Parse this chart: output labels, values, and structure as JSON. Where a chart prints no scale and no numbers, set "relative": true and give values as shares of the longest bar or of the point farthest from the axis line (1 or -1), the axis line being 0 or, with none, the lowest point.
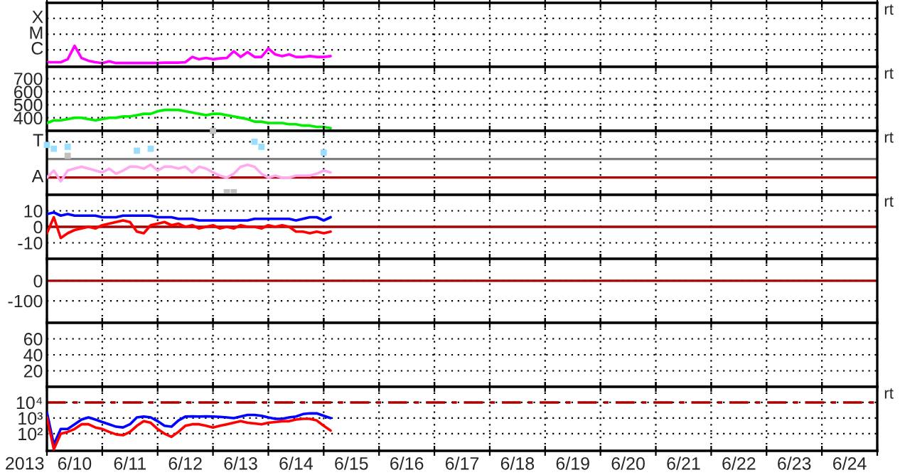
{
  "chart_data": [
    {
      "type": "line",
      "relative": true,
      "grid": "x",
      "tick_labels": false,
      "annotations": [
        "rt"
      ],
      "xlim": [
        "2013-06-10T00:00",
        "2013-06-25T00:00"
      ],
      "xticks": [
        {
          "value": "2013-06-10T00:00",
          "label": null
        },
        {
          "value": "2013-06-11T00:00",
          "label": null
        },
        {
          "value": "2013-06-12T00:00",
          "label": null
        },
        {
          "value": "2013-06-13T00:00",
          "label": null
        },
        {
          "value": "2013-06-14T00:00",
          "label": null
        },
        {
          "value": "2013-06-15T00:00",
          "label": null
        },
        {
          "value": "2013-06-16T00:00",
          "label": null
        },
        {
          "value": "2013-06-17T00:00",
          "label": null
        },
        {
          "value": "2013-06-18T00:00",
          "label": null
        },
        {
          "value": "2013-06-19T00:00",
          "label": null
        },
        {
          "value": "2013-06-20T00:00",
          "label": null
        },
        {
          "value": "2013-06-21T00:00",
          "label": null
        },
        {
          "value": "2013-06-22T00:00",
          "label": null
        },
        {
          "value": "2013-06-23T00:00",
          "label": null
        },
        {
          "value": "2013-06-24T00:00",
          "label": null
        },
        {
          "value": "2013-06-25T00:00",
          "label": null
        }
      ],
      "ref_lines": [
        {
          "axis": "y",
          "value": 0.81,
          "label": "C",
          "color": "#000000",
          "line_style": "dotted"
        },
        {
          "axis": "y",
          "value": 1.55,
          "label": "M",
          "color": "#000000",
          "line_style": "dotted"
        },
        {
          "axis": "y",
          "value": 2.3,
          "label": "X",
          "color": "#000000",
          "line_style": "dotted"
        }
      ],
      "x": [
        "2013-06-10T00:00",
        "2013-06-10T03:00",
        "2013-06-10T06:00",
        "2013-06-10T09:00",
        "2013-06-10T12:00",
        "2013-06-10T15:00",
        "2013-06-10T18:00",
        "2013-06-10T21:00",
        "2013-06-11T00:00",
        "2013-06-11T03:00",
        "2013-06-11T06:00",
        "2013-06-11T09:00",
        "2013-06-11T12:00",
        "2013-06-11T15:00",
        "2013-06-11T18:00",
        "2013-06-11T21:00",
        "2013-06-12T00:00",
        "2013-06-12T03:00",
        "2013-06-12T06:00",
        "2013-06-12T09:00",
        "2013-06-12T12:00",
        "2013-06-12T15:00",
        "2013-06-12T18:00",
        "2013-06-12T21:00",
        "2013-06-13T00:00",
        "2013-06-13T03:00",
        "2013-06-13T06:00",
        "2013-06-13T09:00",
        "2013-06-13T12:00",
        "2013-06-13T15:00",
        "2013-06-13T18:00",
        "2013-06-13T21:00",
        "2013-06-14T00:00",
        "2013-06-14T03:00",
        "2013-06-14T06:00",
        "2013-06-14T09:00",
        "2013-06-14T12:00",
        "2013-06-14T15:00",
        "2013-06-14T18:00",
        "2013-06-14T21:00",
        "2013-06-15T00:00",
        "2013-06-15T03:00"
      ],
      "series": [
        {
          "color": "#ff00ff",
          "values": [
            0.22,
            0.22,
            0.22,
            0.36,
            1.0,
            0.42,
            0.29,
            0.22,
            0.18,
            0.26,
            0.18,
            0.18,
            0.18,
            0.18,
            0.18,
            0.18,
            0.18,
            0.2,
            0.2,
            0.2,
            0.22,
            0.47,
            0.36,
            0.42,
            0.36,
            0.4,
            0.42,
            0.74,
            0.47,
            0.7,
            0.47,
            0.47,
            0.87,
            0.59,
            0.51,
            0.59,
            0.47,
            0.47,
            0.51,
            0.47,
            0.47,
            0.51
          ]
        }
      ]
    },
    {
      "type": "line",
      "grid": true,
      "tick_labels": "y",
      "annotations": [
        "rt"
      ],
      "xlim": [
        "2013-06-10T00:00",
        "2013-06-25T00:00"
      ],
      "xticks": [
        {
          "value": "2013-06-10T00:00",
          "label": null
        },
        {
          "value": "2013-06-11T00:00",
          "label": null
        },
        {
          "value": "2013-06-12T00:00",
          "label": null
        },
        {
          "value": "2013-06-13T00:00",
          "label": null
        },
        {
          "value": "2013-06-14T00:00",
          "label": null
        },
        {
          "value": "2013-06-15T00:00",
          "label": null
        },
        {
          "value": "2013-06-16T00:00",
          "label": null
        },
        {
          "value": "2013-06-17T00:00",
          "label": null
        },
        {
          "value": "2013-06-18T00:00",
          "label": null
        },
        {
          "value": "2013-06-19T00:00",
          "label": null
        },
        {
          "value": "2013-06-20T00:00",
          "label": null
        },
        {
          "value": "2013-06-21T00:00",
          "label": null
        },
        {
          "value": "2013-06-22T00:00",
          "label": null
        },
        {
          "value": "2013-06-23T00:00",
          "label": null
        },
        {
          "value": "2013-06-24T00:00",
          "label": null
        },
        {
          "value": "2013-06-25T00:00",
          "label": null
        }
      ],
      "ylim": [
        300,
        790
      ],
      "yticks": [
        400,
        500,
        600,
        700
      ],
      "x": [
        "2013-06-10T00:00",
        "2013-06-10T03:00",
        "2013-06-10T06:00",
        "2013-06-10T09:00",
        "2013-06-10T12:00",
        "2013-06-10T15:00",
        "2013-06-10T18:00",
        "2013-06-10T21:00",
        "2013-06-11T00:00",
        "2013-06-11T03:00",
        "2013-06-11T06:00",
        "2013-06-11T09:00",
        "2013-06-11T12:00",
        "2013-06-11T15:00",
        "2013-06-11T18:00",
        "2013-06-11T21:00",
        "2013-06-12T00:00",
        "2013-06-12T03:00",
        "2013-06-12T06:00",
        "2013-06-12T09:00",
        "2013-06-12T12:00",
        "2013-06-12T15:00",
        "2013-06-12T18:00",
        "2013-06-12T21:00",
        "2013-06-13T00:00",
        "2013-06-13T03:00",
        "2013-06-13T06:00",
        "2013-06-13T09:00",
        "2013-06-13T12:00",
        "2013-06-13T15:00",
        "2013-06-13T18:00",
        "2013-06-13T21:00",
        "2013-06-14T00:00",
        "2013-06-14T03:00",
        "2013-06-14T06:00",
        "2013-06-14T09:00",
        "2013-06-14T12:00",
        "2013-06-14T15:00",
        "2013-06-14T18:00",
        "2013-06-14T21:00",
        "2013-06-15T00:00",
        "2013-06-15T03:00"
      ],
      "series": [
        {
          "color": "#00ee00",
          "values": [
            360,
            380,
            380,
            390,
            400,
            400,
            390,
            380,
            390,
            400,
            400,
            410,
            410,
            420,
            430,
            430,
            450,
            460,
            460,
            460,
            450,
            440,
            430,
            420,
            430,
            430,
            420,
            410,
            400,
            390,
            370,
            370,
            360,
            360,
            360,
            350,
            350,
            340,
            340,
            330,
            330,
            320
          ]
        }
      ]
    },
    {
      "type": "line",
      "relative": true,
      "grid": "x",
      "tick_labels": false,
      "annotations": [
        "rt"
      ],
      "xlim": [
        "2013-06-10T00:00",
        "2013-06-25T00:00"
      ],
      "xticks": [
        {
          "value": "2013-06-10T00:00",
          "label": null
        },
        {
          "value": "2013-06-11T00:00",
          "label": null
        },
        {
          "value": "2013-06-12T00:00",
          "label": null
        },
        {
          "value": "2013-06-13T00:00",
          "label": null
        },
        {
          "value": "2013-06-14T00:00",
          "label": null
        },
        {
          "value": "2013-06-15T00:00",
          "label": null
        },
        {
          "value": "2013-06-16T00:00",
          "label": null
        },
        {
          "value": "2013-06-17T00:00",
          "label": null
        },
        {
          "value": "2013-06-18T00:00",
          "label": null
        },
        {
          "value": "2013-06-19T00:00",
          "label": null
        },
        {
          "value": "2013-06-20T00:00",
          "label": null
        },
        {
          "value": "2013-06-21T00:00",
          "label": null
        },
        {
          "value": "2013-06-22T00:00",
          "label": null
        },
        {
          "value": "2013-06-23T00:00",
          "label": null
        },
        {
          "value": "2013-06-24T00:00",
          "label": null
        },
        {
          "value": "2013-06-25T00:00",
          "label": null
        }
      ],
      "ref_lines": [
        {
          "axis": "y",
          "value": 0.27,
          "label": "A",
          "color": "#aa0000"
        },
        {
          "axis": "y",
          "value": 0.83,
          "label": "T",
          "color": "#000000",
          "line_style": "dotted"
        },
        {
          "axis": "y",
          "value": 0.56,
          "color": "#808080"
        }
      ],
      "x": [
        "2013-06-10T00:00",
        "2013-06-10T03:00",
        "2013-06-10T06:00",
        "2013-06-10T09:00",
        "2013-06-10T12:00",
        "2013-06-10T15:00",
        "2013-06-10T18:00",
        "2013-06-10T21:00",
        "2013-06-11T00:00",
        "2013-06-11T03:00",
        "2013-06-11T06:00",
        "2013-06-11T09:00",
        "2013-06-11T12:00",
        "2013-06-11T15:00",
        "2013-06-11T18:00",
        "2013-06-11T21:00",
        "2013-06-12T00:00",
        "2013-06-12T03:00",
        "2013-06-12T06:00",
        "2013-06-12T09:00",
        "2013-06-12T12:00",
        "2013-06-12T15:00",
        "2013-06-12T18:00",
        "2013-06-12T21:00",
        "2013-06-13T00:00",
        "2013-06-13T03:00",
        "2013-06-13T06:00",
        "2013-06-13T09:00",
        "2013-06-13T12:00",
        "2013-06-13T15:00",
        "2013-06-13T18:00",
        "2013-06-13T21:00",
        "2013-06-14T00:00",
        "2013-06-14T03:00",
        "2013-06-14T06:00",
        "2013-06-14T09:00",
        "2013-06-14T12:00",
        "2013-06-14T15:00",
        "2013-06-14T18:00",
        "2013-06-14T21:00",
        "2013-06-15T00:00",
        "2013-06-15T03:00"
      ],
      "series": [
        {
          "type": "scatter",
          "marker": "square",
          "color": "#c0c0c0",
          "values": [
            null,
            null,
            null,
            0.61,
            null,
            null,
            null,
            null,
            null,
            null,
            null,
            null,
            null,
            null,
            null,
            null,
            null,
            null,
            null,
            null,
            null,
            null,
            null,
            null,
            1.0,
            null,
            0.04,
            0.04,
            null,
            null,
            null,
            null,
            null,
            null,
            null,
            null,
            null,
            null,
            null,
            null,
            null,
            null
          ]
        },
        {
          "color": "#ffaaee",
          "values": [
            0.27,
            0.38,
            0.21,
            0.38,
            0.41,
            0.44,
            0.41,
            0.38,
            0.35,
            0.41,
            0.33,
            0.38,
            0.44,
            0.44,
            0.41,
            0.47,
            0.38,
            0.44,
            0.44,
            0.41,
            0.44,
            0.35,
            0.44,
            0.41,
            0.35,
            0.3,
            0.27,
            0.33,
            0.44,
            0.47,
            0.44,
            0.33,
            0.27,
            0.3,
            0.27,
            0.27,
            0.3,
            0.3,
            0.3,
            0.33,
            0.38,
            0.35
          ]
        },
        {
          "type": "scatter",
          "marker": "square",
          "color": "#99ddff",
          "values": [
            0.78,
            0.72,
            null,
            0.75,
            null,
            null,
            null,
            null,
            null,
            null,
            null,
            null,
            null,
            0.69,
            null,
            0.72,
            null,
            null,
            null,
            null,
            null,
            null,
            null,
            null,
            null,
            null,
            null,
            null,
            null,
            null,
            0.83,
            0.75,
            null,
            null,
            null,
            null,
            null,
            null,
            null,
            null,
            0.66,
            null
          ]
        }
      ]
    },
    {
      "type": "line",
      "grid": true,
      "tick_labels": "y",
      "annotations": [
        "rt"
      ],
      "xlim": [
        "2013-06-10T00:00",
        "2013-06-25T00:00"
      ],
      "xticks": [
        {
          "value": "2013-06-10T00:00",
          "label": null
        },
        {
          "value": "2013-06-11T00:00",
          "label": null
        },
        {
          "value": "2013-06-12T00:00",
          "label": null
        },
        {
          "value": "2013-06-13T00:00",
          "label": null
        },
        {
          "value": "2013-06-14T00:00",
          "label": null
        },
        {
          "value": "2013-06-15T00:00",
          "label": null
        },
        {
          "value": "2013-06-16T00:00",
          "label": null
        },
        {
          "value": "2013-06-17T00:00",
          "label": null
        },
        {
          "value": "2013-06-18T00:00",
          "label": null
        },
        {
          "value": "2013-06-19T00:00",
          "label": null
        },
        {
          "value": "2013-06-20T00:00",
          "label": null
        },
        {
          "value": "2013-06-21T00:00",
          "label": null
        },
        {
          "value": "2013-06-22T00:00",
          "label": null
        },
        {
          "value": "2013-06-23T00:00",
          "label": null
        },
        {
          "value": "2013-06-24T00:00",
          "label": null
        },
        {
          "value": "2013-06-25T00:00",
          "label": null
        }
      ],
      "ylim": [
        -20,
        20
      ],
      "yticks": [
        {
          "value": -10,
          "label": "-10"
        },
        0,
        10
      ],
      "ref_lines": [
        {
          "axis": "y",
          "value": 0,
          "color": "#aa0000"
        }
      ],
      "x": [
        "2013-06-10T00:00",
        "2013-06-10T03:00",
        "2013-06-10T06:00",
        "2013-06-10T09:00",
        "2013-06-10T12:00",
        "2013-06-10T15:00",
        "2013-06-10T18:00",
        "2013-06-10T21:00",
        "2013-06-11T00:00",
        "2013-06-11T03:00",
        "2013-06-11T06:00",
        "2013-06-11T09:00",
        "2013-06-11T12:00",
        "2013-06-11T15:00",
        "2013-06-11T18:00",
        "2013-06-11T21:00",
        "2013-06-12T00:00",
        "2013-06-12T03:00",
        "2013-06-12T06:00",
        "2013-06-12T09:00",
        "2013-06-12T12:00",
        "2013-06-12T15:00",
        "2013-06-12T18:00",
        "2013-06-12T21:00",
        "2013-06-13T00:00",
        "2013-06-13T03:00",
        "2013-06-13T06:00",
        "2013-06-13T09:00",
        "2013-06-13T12:00",
        "2013-06-13T15:00",
        "2013-06-13T18:00",
        "2013-06-13T21:00",
        "2013-06-14T00:00",
        "2013-06-14T03:00",
        "2013-06-14T06:00",
        "2013-06-14T09:00",
        "2013-06-14T12:00",
        "2013-06-14T15:00",
        "2013-06-14T18:00",
        "2013-06-14T21:00",
        "2013-06-15T00:00",
        "2013-06-15T03:00"
      ],
      "series": [
        {
          "color": "#0000ff",
          "values": [
            8,
            9,
            7,
            8,
            7,
            7,
            7,
            7,
            6,
            6,
            6,
            7,
            7,
            7,
            7,
            7,
            6,
            6,
            6,
            5,
            5,
            5,
            4,
            4,
            4,
            4,
            4,
            4,
            4,
            4,
            5,
            5,
            5,
            5,
            5,
            5,
            4,
            5,
            6,
            6,
            4,
            6
          ]
        },
        {
          "color": "#ff0000",
          "values": [
            -4,
            6,
            -7,
            -4,
            -2,
            -1,
            0,
            -1,
            1,
            2,
            3,
            4,
            3,
            -3,
            -4,
            1,
            2,
            3,
            1,
            2,
            0,
            1,
            -1,
            0,
            1,
            -1,
            0,
            -1,
            1,
            0,
            0,
            -1,
            1,
            0,
            1,
            0,
            -3,
            -3,
            -4,
            -3,
            -4,
            -3
          ]
        }
      ]
    },
    {
      "type": "line",
      "grid": true,
      "tick_labels": "y",
      "xlim": [
        "2013-06-10T00:00",
        "2013-06-25T00:00"
      ],
      "xticks": [
        {
          "value": "2013-06-10T00:00",
          "label": null
        },
        {
          "value": "2013-06-11T00:00",
          "label": null
        },
        {
          "value": "2013-06-12T00:00",
          "label": null
        },
        {
          "value": "2013-06-13T00:00",
          "label": null
        },
        {
          "value": "2013-06-14T00:00",
          "label": null
        },
        {
          "value": "2013-06-15T00:00",
          "label": null
        },
        {
          "value": "2013-06-16T00:00",
          "label": null
        },
        {
          "value": "2013-06-17T00:00",
          "label": null
        },
        {
          "value": "2013-06-18T00:00",
          "label": null
        },
        {
          "value": "2013-06-19T00:00",
          "label": null
        },
        {
          "value": "2013-06-20T00:00",
          "label": null
        },
        {
          "value": "2013-06-21T00:00",
          "label": null
        },
        {
          "value": "2013-06-22T00:00",
          "label": null
        },
        {
          "value": "2013-06-23T00:00",
          "label": null
        },
        {
          "value": "2013-06-24T00:00",
          "label": null
        },
        {
          "value": "2013-06-25T00:00",
          "label": null
        }
      ],
      "ylim": [
        -210,
        110
      ],
      "yticks": [
        {
          "value": -100,
          "label": "-100"
        },
        0
      ],
      "ref_lines": [
        {
          "axis": "y",
          "value": 0,
          "color": "#aa0000"
        }
      ]
    },
    {
      "type": "line",
      "grid": true,
      "tick_labels": "y",
      "xlim": [
        "2013-06-10T00:00",
        "2013-06-25T00:00"
      ],
      "xticks": [
        {
          "value": "2013-06-10T00:00",
          "label": null
        },
        {
          "value": "2013-06-11T00:00",
          "label": null
        },
        {
          "value": "2013-06-12T00:00",
          "label": null
        },
        {
          "value": "2013-06-13T00:00",
          "label": null
        },
        {
          "value": "2013-06-14T00:00",
          "label": null
        },
        {
          "value": "2013-06-15T00:00",
          "label": null
        },
        {
          "value": "2013-06-16T00:00",
          "label": null
        },
        {
          "value": "2013-06-17T00:00",
          "label": null
        },
        {
          "value": "2013-06-18T00:00",
          "label": null
        },
        {
          "value": "2013-06-19T00:00",
          "label": null
        },
        {
          "value": "2013-06-20T00:00",
          "label": null
        },
        {
          "value": "2013-06-21T00:00",
          "label": null
        },
        {
          "value": "2013-06-22T00:00",
          "label": null
        },
        {
          "value": "2013-06-23T00:00",
          "label": null
        },
        {
          "value": "2013-06-24T00:00",
          "label": null
        },
        {
          "value": "2013-06-25T00:00",
          "label": null
        }
      ],
      "ylim": [
        0,
        80
      ],
      "yticks": [
        20,
        40,
        60
      ]
    },
    {
      "type": "line",
      "log": "y",
      "grid": true,
      "annotations": [
        "rt"
      ],
      "xlabel": "2013",
      "xlim": [
        "2013-06-10T00:00",
        "2013-06-25T00:00"
      ],
      "xticks": [
        {
          "value": "2013-06-10T00:00",
          "label": null
        },
        {
          "value": "2013-06-11T00:00",
          "label": null
        },
        {
          "value": "2013-06-12T00:00",
          "label": null
        },
        {
          "value": "2013-06-13T00:00",
          "label": null
        },
        {
          "value": "2013-06-14T00:00",
          "label": null
        },
        {
          "value": "2013-06-15T00:00",
          "label": null
        },
        {
          "value": "2013-06-16T00:00",
          "label": null
        },
        {
          "value": "2013-06-17T00:00",
          "label": null
        },
        {
          "value": "2013-06-18T00:00",
          "label": null
        },
        {
          "value": "2013-06-19T00:00",
          "label": null
        },
        {
          "value": "2013-06-20T00:00",
          "label": null
        },
        {
          "value": "2013-06-21T00:00",
          "label": null
        },
        {
          "value": "2013-06-22T00:00",
          "label": null
        },
        {
          "value": "2013-06-23T00:00",
          "label": null
        },
        {
          "value": "2013-06-24T00:00",
          "label": null
        },
        {
          "value": "2013-06-25T00:00",
          "label": null
        },
        {
          "value": "2013-06-10T12:00",
          "label": "6/10"
        },
        {
          "value": "2013-06-11T12:00",
          "label": "6/11"
        },
        {
          "value": "2013-06-12T12:00",
          "label": "6/12"
        },
        {
          "value": "2013-06-13T12:00",
          "label": "6/13"
        },
        {
          "value": "2013-06-14T12:00",
          "label": "6/14"
        },
        {
          "value": "2013-06-15T12:00",
          "label": "6/15"
        },
        {
          "value": "2013-06-16T12:00",
          "label": "6/16"
        },
        {
          "value": "2013-06-17T12:00",
          "label": "6/17"
        },
        {
          "value": "2013-06-18T12:00",
          "label": "6/18"
        },
        {
          "value": "2013-06-19T12:00",
          "label": "6/19"
        },
        {
          "value": "2013-06-20T12:00",
          "label": "6/20"
        },
        {
          "value": "2013-06-21T12:00",
          "label": "6/21"
        },
        {
          "value": "2013-06-22T12:00",
          "label": "6/22"
        },
        {
          "value": "2013-06-23T12:00",
          "label": "6/23"
        },
        {
          "value": "2013-06-24T12:00",
          "label": "6/24"
        }
      ],
      "ylim": [
        8,
        100000
      ],
      "yticks": [
        {
          "value": 100,
          "label": "10²"
        },
        {
          "value": 1000,
          "label": "10³"
        },
        {
          "value": 10000,
          "label": "10⁴"
        }
      ],
      "ref_lines": [
        {
          "axis": "y",
          "value": 10000,
          "color": "#aa0000",
          "line_style": "dashdot"
        }
      ],
      "x": [
        "2013-06-10T00:00",
        "2013-06-10T03:00",
        "2013-06-10T06:00",
        "2013-06-10T09:00",
        "2013-06-10T12:00",
        "2013-06-10T15:00",
        "2013-06-10T18:00",
        "2013-06-10T21:00",
        "2013-06-11T00:00",
        "2013-06-11T03:00",
        "2013-06-11T06:00",
        "2013-06-11T09:00",
        "2013-06-11T12:00",
        "2013-06-11T15:00",
        "2013-06-11T18:00",
        "2013-06-11T21:00",
        "2013-06-12T00:00",
        "2013-06-12T03:00",
        "2013-06-12T06:00",
        "2013-06-12T09:00",
        "2013-06-12T12:00",
        "2013-06-12T15:00",
        "2013-06-12T18:00",
        "2013-06-12T21:00",
        "2013-06-13T00:00",
        "2013-06-13T03:00",
        "2013-06-13T06:00",
        "2013-06-13T09:00",
        "2013-06-13T12:00",
        "2013-06-13T15:00",
        "2013-06-13T18:00",
        "2013-06-13T21:00",
        "2013-06-14T00:00",
        "2013-06-14T03:00",
        "2013-06-14T06:00",
        "2013-06-14T09:00",
        "2013-06-14T12:00",
        "2013-06-14T15:00",
        "2013-06-14T18:00",
        "2013-06-14T21:00",
        "2013-06-15T00:00",
        "2013-06-15T03:00"
      ],
      "series": [
        {
          "color": "#0000ff",
          "values": [
            2300,
            20,
            200,
            200,
            400,
            800,
            1100,
            800,
            560,
            400,
            280,
            250,
            400,
            1100,
            1250,
            1100,
            630,
            320,
            280,
            700,
            1250,
            1300,
            1250,
            1300,
            1250,
            1200,
            1100,
            1000,
            1250,
            1600,
            1600,
            1400,
            1100,
            900,
            900,
            1100,
            1250,
            1800,
            2000,
            2000,
            1400,
            1000
          ]
        },
        {
          "color": "#ff0000",
          "values": [
            1100,
            10,
            100,
            130,
            200,
            400,
            400,
            250,
            200,
            130,
            90,
            80,
            130,
            320,
            630,
            500,
            200,
            100,
            63,
            130,
            320,
            400,
            400,
            320,
            250,
            320,
            400,
            500,
            630,
            500,
            450,
            400,
            500,
            560,
            630,
            630,
            800,
            900,
            900,
            700,
            320,
            160
          ]
        }
      ]
    }
  ]
}
